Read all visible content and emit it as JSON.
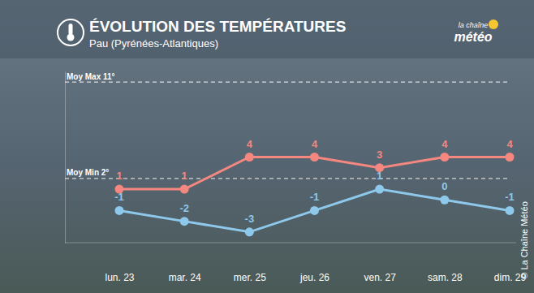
{
  "chart_data": {
    "type": "line",
    "title": "ÉVOLUTION DES TEMPÉRATURES",
    "subtitle": "Pau (Pyrénées-Atlantiques)",
    "logo_text": [
      "la chaîne",
      "météo"
    ],
    "credit": "© La Chaîne Météo",
    "categories": [
      "lun. 23",
      "mar. 24",
      "mer. 25",
      "jeu. 26",
      "ven. 27",
      "sam. 28",
      "dim. 29"
    ],
    "series": [
      {
        "color": "#f4877f",
        "values": [
          1,
          1,
          4,
          4,
          3,
          4,
          4
        ]
      },
      {
        "color": "#8ec8ea",
        "values": [
          -1,
          -2,
          -3,
          -1,
          1,
          0,
          -1
        ]
      }
    ],
    "ylim": [
      -4,
      12
    ],
    "yticks": [
      {
        "value": 2,
        "label": "Moy Min 2°"
      },
      {
        "value": 11,
        "label": "Moy Max 11°"
      }
    ],
    "grid": true,
    "data_labels": true,
    "marker": "circle"
  }
}
